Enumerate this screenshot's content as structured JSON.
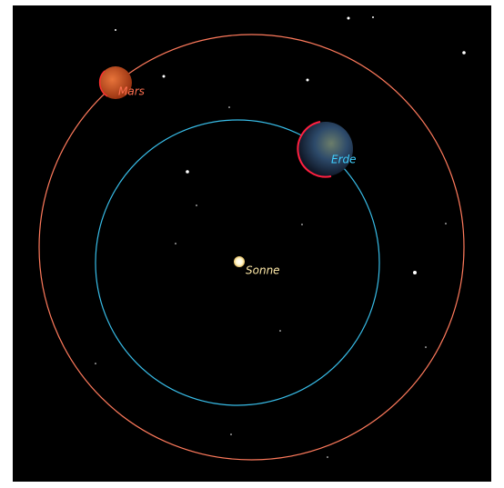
{
  "bodies": [
    {
      "label": "Sonne"
    },
    {
      "label": "Erde"
    },
    {
      "label": "Mars"
    }
  ]
}
